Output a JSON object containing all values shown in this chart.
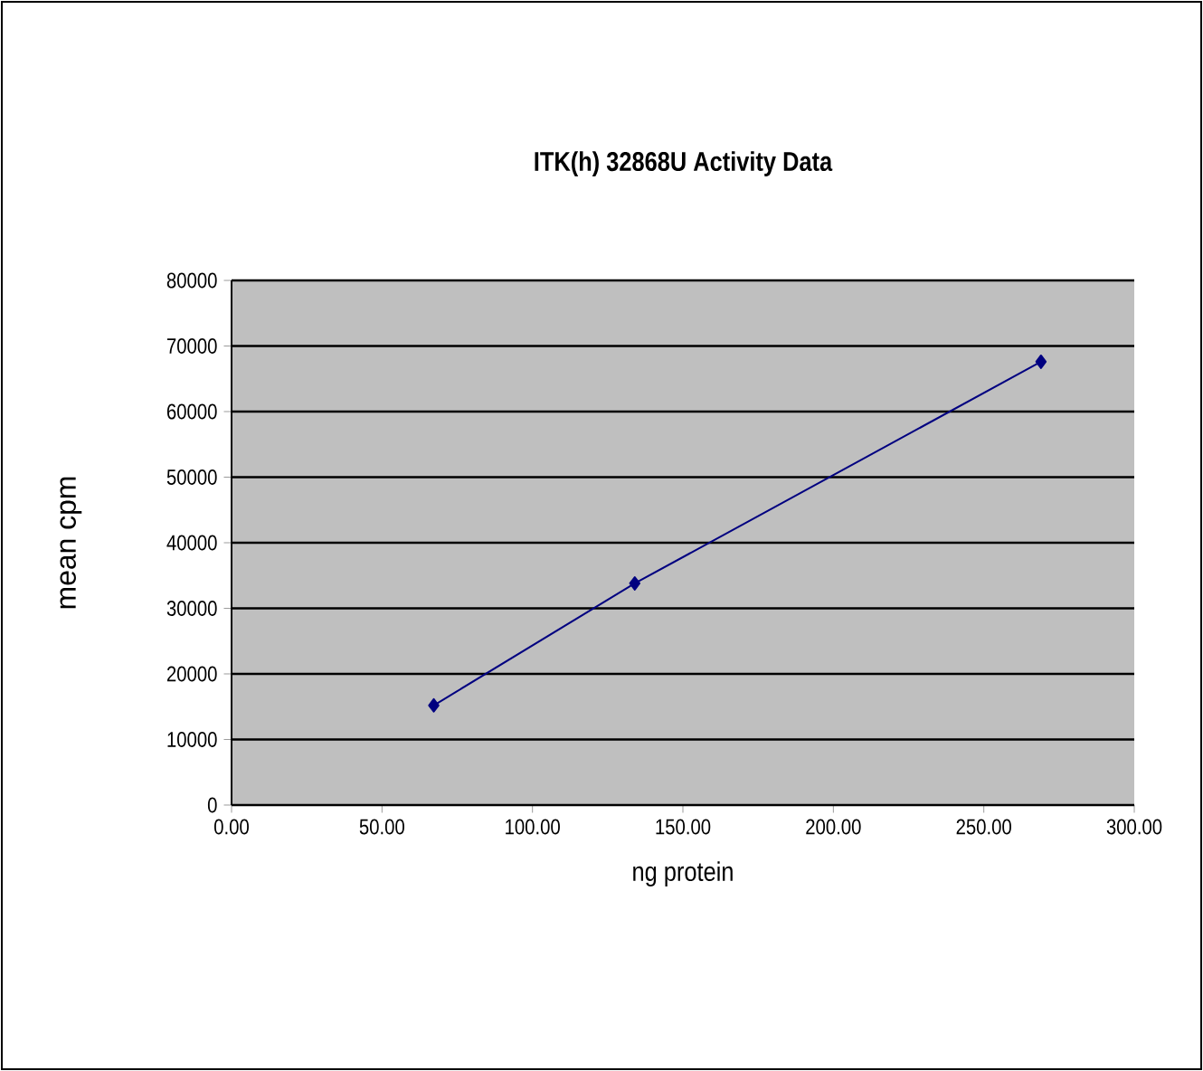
{
  "chart_data": {
    "type": "line",
    "title": "ITK(h)  32868U Activity Data",
    "xlabel": "ng protein",
    "ylabel": "mean cpm",
    "x": [
      67.2,
      134,
      269
    ],
    "series": [
      {
        "color": "#000080",
        "values": [
          15200,
          33800,
          67600
        ]
      }
    ],
    "xlim": [
      0,
      300
    ],
    "ylim": [
      0,
      80000
    ],
    "xticks": [
      {
        "value": 0,
        "label": "0.00"
      },
      {
        "value": 50,
        "label": "50.00"
      },
      {
        "value": 100,
        "label": "100.00"
      },
      {
        "value": 150,
        "label": "150.00"
      },
      {
        "value": 200,
        "label": "200.00"
      },
      {
        "value": 250,
        "label": "250.00"
      },
      {
        "value": 300,
        "label": "300.00"
      }
    ],
    "yticks": [
      0,
      10000,
      20000,
      30000,
      40000,
      50000,
      60000,
      70000,
      80000
    ],
    "grid": "y",
    "marker": "diamond",
    "line_style": "solid"
  }
}
